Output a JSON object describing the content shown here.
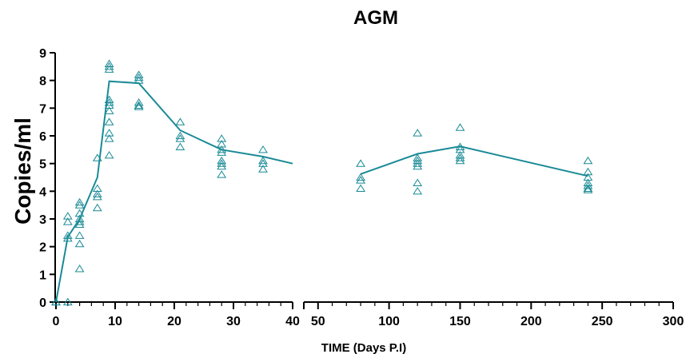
{
  "chart_data": {
    "type": "scatter",
    "title": "AGM",
    "xlabel": "TIME (Days P.I)",
    "ylabel": "Copies/ml",
    "ylim": [
      0,
      9
    ],
    "yticks": [
      "0",
      "1",
      "2",
      "3",
      "4",
      "5",
      "6",
      "7",
      "8",
      "9"
    ],
    "x_axis_segments": [
      {
        "xlim": [
          0,
          40
        ],
        "ticks": [
          "0",
          "10",
          "20",
          "30",
          "40"
        ]
      },
      {
        "xlim": [
          40,
          300
        ],
        "ticks": [
          "50",
          "100",
          "150",
          "200",
          "250",
          "300"
        ]
      }
    ],
    "grid": false,
    "marker": "triangle-open",
    "color": "#1a8a96",
    "points": [
      [
        0,
        0
      ],
      [
        0,
        0
      ],
      [
        2,
        3.1
      ],
      [
        2,
        2.9
      ],
      [
        2,
        2.4
      ],
      [
        2,
        2.3
      ],
      [
        2,
        0
      ],
      [
        4,
        3.6
      ],
      [
        4,
        3.5
      ],
      [
        4,
        3.2
      ],
      [
        4,
        3.0
      ],
      [
        4,
        2.9
      ],
      [
        4,
        2.8
      ],
      [
        4,
        2.4
      ],
      [
        4,
        2.1
      ],
      [
        4,
        1.2
      ],
      [
        7,
        5.2
      ],
      [
        7,
        4.1
      ],
      [
        7,
        3.9
      ],
      [
        7,
        3.8
      ],
      [
        7,
        3.4
      ],
      [
        9,
        8.6
      ],
      [
        9,
        8.5
      ],
      [
        9,
        8.4
      ],
      [
        9,
        7.3
      ],
      [
        9,
        7.2
      ],
      [
        9,
        7.1
      ],
      [
        9,
        6.9
      ],
      [
        9,
        6.5
      ],
      [
        9,
        6.1
      ],
      [
        9,
        5.9
      ],
      [
        9,
        5.3
      ],
      [
        14,
        8.2
      ],
      [
        14,
        8.1
      ],
      [
        14,
        8.0
      ],
      [
        14,
        7.2
      ],
      [
        14,
        7.1
      ],
      [
        14,
        7.05
      ],
      [
        21,
        6.5
      ],
      [
        21,
        6.0
      ],
      [
        21,
        5.9
      ],
      [
        21,
        5.6
      ],
      [
        28,
        5.9
      ],
      [
        28,
        5.7
      ],
      [
        28,
        5.5
      ],
      [
        28,
        5.4
      ],
      [
        28,
        5.1
      ],
      [
        28,
        5.0
      ],
      [
        28,
        4.9
      ],
      [
        28,
        4.6
      ],
      [
        35,
        5.5
      ],
      [
        35,
        5.1
      ],
      [
        35,
        5.0
      ],
      [
        35,
        4.8
      ],
      [
        80,
        5.0
      ],
      [
        80,
        4.5
      ],
      [
        80,
        4.4
      ],
      [
        80,
        4.1
      ],
      [
        120,
        6.1
      ],
      [
        120,
        5.2
      ],
      [
        120,
        5.1
      ],
      [
        120,
        5.0
      ],
      [
        120,
        4.9
      ],
      [
        120,
        4.3
      ],
      [
        120,
        4.0
      ],
      [
        150,
        6.3
      ],
      [
        150,
        5.6
      ],
      [
        150,
        5.5
      ],
      [
        150,
        5.3
      ],
      [
        150,
        5.2
      ],
      [
        150,
        5.1
      ],
      [
        240,
        5.1
      ],
      [
        240,
        4.7
      ],
      [
        240,
        4.5
      ],
      [
        240,
        4.3
      ],
      [
        240,
        4.2
      ],
      [
        240,
        4.1
      ],
      [
        240,
        4.05
      ]
    ],
    "mean_line": [
      [
        0,
        0
      ],
      [
        2,
        2.35
      ],
      [
        4,
        3.0
      ],
      [
        7,
        4.5
      ],
      [
        9,
        7.97
      ],
      [
        14,
        7.9
      ],
      [
        21,
        6.2
      ],
      [
        28,
        5.5
      ],
      [
        35,
        5.25
      ],
      [
        40,
        5.0
      ],
      [
        80,
        4.62
      ],
      [
        120,
        5.35
      ],
      [
        150,
        5.62
      ],
      [
        240,
        4.55
      ]
    ]
  }
}
